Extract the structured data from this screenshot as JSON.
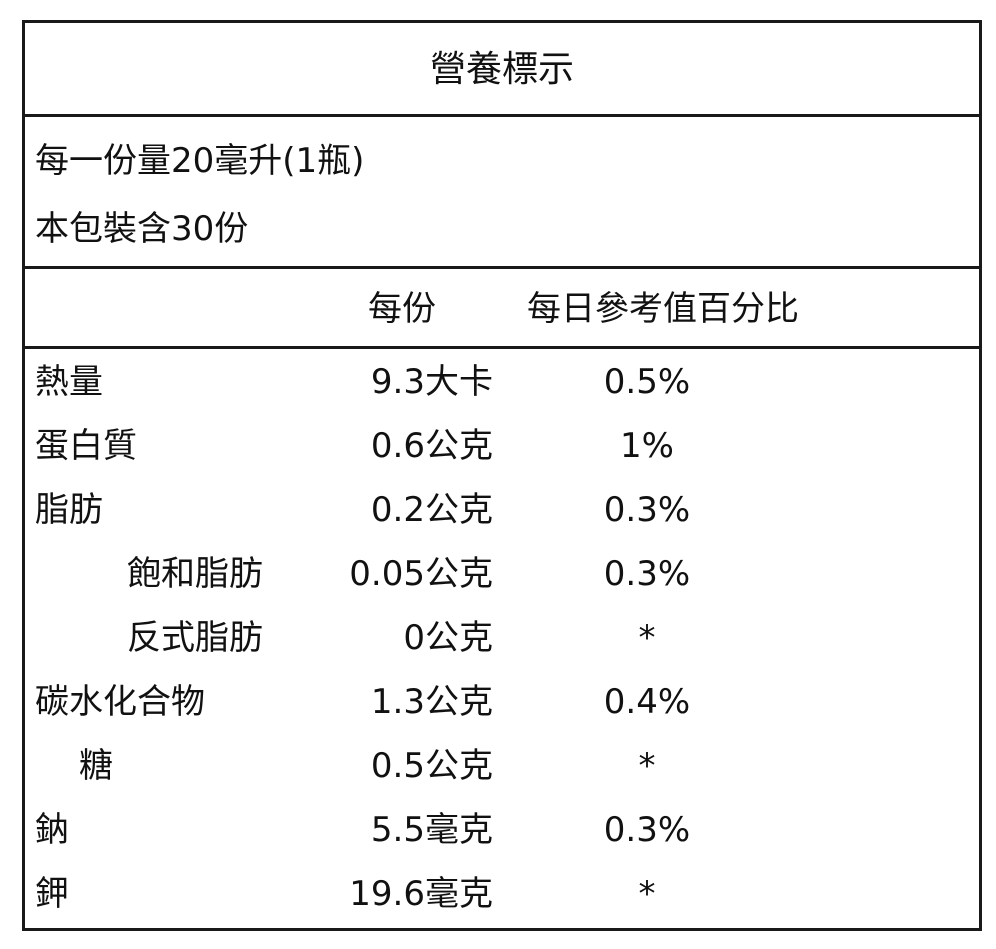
{
  "title": "營養標示",
  "serving_size": "每一份量20毫升(1瓶)",
  "servings_per_package": "本包裝含30份",
  "columns": {
    "per_serving": "每份",
    "daily_value": "每日參考值百分比"
  },
  "rows": [
    {
      "name": "熱量",
      "amount": "9.3大卡",
      "dv": "0.5%"
    },
    {
      "name": "蛋白質",
      "amount": "0.6公克",
      "dv": "1%"
    },
    {
      "name": "脂肪",
      "amount": "0.2公克",
      "dv": "0.3%"
    },
    {
      "name": "飽和脂肪",
      "amount": "0.05公克",
      "dv": "0.3%"
    },
    {
      "name": "反式脂肪",
      "amount": "0公克",
      "dv": "*"
    },
    {
      "name": "碳水化合物",
      "amount": "1.3公克",
      "dv": "0.4%"
    },
    {
      "name": "糖",
      "amount": "0.5公克",
      "dv": "*"
    },
    {
      "name": "鈉",
      "amount": "5.5毫克",
      "dv": "0.3%"
    },
    {
      "name": "鉀",
      "amount": "19.6毫克",
      "dv": "*"
    }
  ]
}
